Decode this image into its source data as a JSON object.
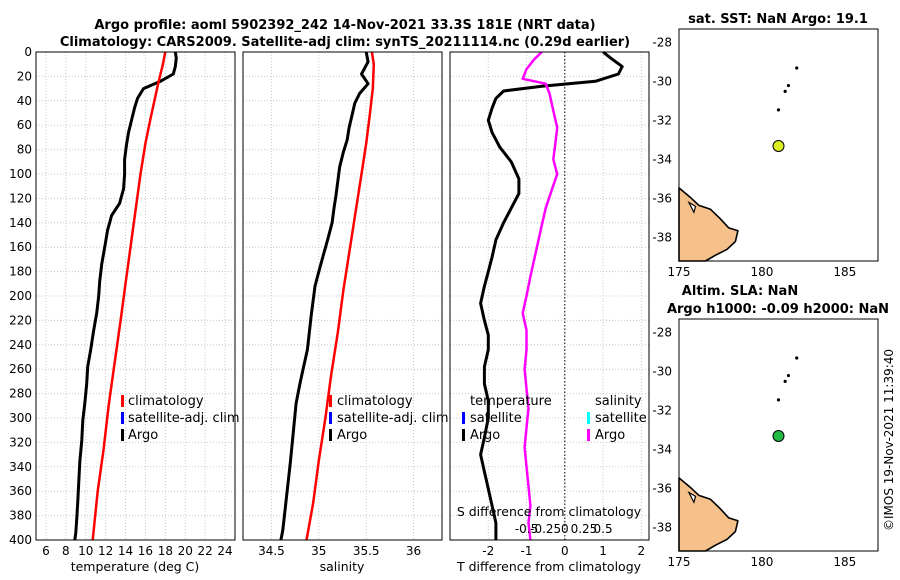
{
  "header": {
    "title_line1": "Argo profile: aoml 5902392_242 14-Nov-2021 33.3S 181E (NRT data)",
    "title_line2": "Climatology: CARS2009. Satellite-adj clim: synTS_20211114.nc (0.29d earlier)"
  },
  "stamp": "©IMOS 19-Nov-2021 11:39:40",
  "chart_data": [
    {
      "id": "temperature",
      "type": "line",
      "xlabel": "temperature (deg C)",
      "xlim": [
        5,
        25
      ],
      "xticks": [
        6,
        8,
        10,
        12,
        14,
        16,
        18,
        20,
        22,
        24
      ],
      "ylim": [
        0,
        400
      ],
      "yticks": [
        0,
        20,
        40,
        60,
        80,
        100,
        120,
        140,
        160,
        180,
        200,
        220,
        240,
        260,
        280,
        300,
        320,
        340,
        360,
        380,
        400
      ],
      "grid": true,
      "series": [
        {
          "name": "Argo",
          "color": "#000000",
          "points": [
            [
              19.0,
              0
            ],
            [
              19.1,
              5
            ],
            [
              19.0,
              12
            ],
            [
              18.8,
              18
            ],
            [
              17.5,
              24
            ],
            [
              15.8,
              30
            ],
            [
              15.2,
              38
            ],
            [
              14.9,
              46
            ],
            [
              14.6,
              56
            ],
            [
              14.3,
              66
            ],
            [
              14.1,
              76
            ],
            [
              13.9,
              88
            ],
            [
              13.9,
              100
            ],
            [
              13.8,
              112
            ],
            [
              13.4,
              124
            ],
            [
              12.6,
              134
            ],
            [
              12.2,
              146
            ],
            [
              11.9,
              160
            ],
            [
              11.6,
              174
            ],
            [
              11.4,
              188
            ],
            [
              11.3,
              200
            ],
            [
              11.1,
              214
            ],
            [
              10.8,
              228
            ],
            [
              10.5,
              244
            ],
            [
              10.2,
              258
            ],
            [
              10.1,
              272
            ],
            [
              9.9,
              288
            ],
            [
              9.7,
              302
            ],
            [
              9.6,
              318
            ],
            [
              9.4,
              336
            ],
            [
              9.3,
              352
            ],
            [
              9.2,
              368
            ],
            [
              9.1,
              382
            ],
            [
              9.0,
              394
            ],
            [
              8.9,
              400
            ]
          ]
        },
        {
          "name": "climatology",
          "color": "#ff0000",
          "points": [
            [
              18.0,
              0
            ],
            [
              17.7,
              12
            ],
            [
              17.3,
              25
            ],
            [
              16.9,
              40
            ],
            [
              16.5,
              55
            ],
            [
              16.0,
              75
            ],
            [
              15.5,
              100
            ],
            [
              15.0,
              130
            ],
            [
              14.5,
              160
            ],
            [
              14.0,
              190
            ],
            [
              13.5,
              220
            ],
            [
              12.9,
              255
            ],
            [
              12.3,
              290
            ],
            [
              11.8,
              325
            ],
            [
              11.2,
              360
            ],
            [
              10.7,
              400
            ]
          ]
        }
      ],
      "legend": [
        "climatology",
        "satellite-adj. clim",
        "Argo"
      ],
      "legend_colors": [
        "#ff0000",
        "#0000ff",
        "#000000"
      ]
    },
    {
      "id": "salinity",
      "type": "line",
      "xlabel": "salinity",
      "xlim": [
        34.2,
        36.3
      ],
      "xticks": [
        34.5,
        35,
        35.5,
        36
      ],
      "xtick_labels": [
        "34.5",
        "35",
        "35.5",
        "36"
      ],
      "ylim": [
        0,
        400
      ],
      "grid": true,
      "series": [
        {
          "name": "Argo",
          "color": "#000000",
          "points": [
            [
              35.5,
              0
            ],
            [
              35.52,
              8
            ],
            [
              35.45,
              18
            ],
            [
              35.52,
              26
            ],
            [
              35.43,
              34
            ],
            [
              35.38,
              42
            ],
            [
              35.35,
              52
            ],
            [
              35.32,
              62
            ],
            [
              35.3,
              72
            ],
            [
              35.26,
              82
            ],
            [
              35.22,
              94
            ],
            [
              35.2,
              106
            ],
            [
              35.18,
              118
            ],
            [
              35.16,
              128
            ],
            [
              35.14,
              140
            ],
            [
              35.1,
              152
            ],
            [
              35.05,
              166
            ],
            [
              35.0,
              180
            ],
            [
              34.96,
              192
            ],
            [
              34.94,
              204
            ],
            [
              34.92,
              216
            ],
            [
              34.9,
              230
            ],
            [
              34.88,
              244
            ],
            [
              34.84,
              258
            ],
            [
              34.8,
              272
            ],
            [
              34.76,
              288
            ],
            [
              34.74,
              304
            ],
            [
              34.72,
              320
            ],
            [
              34.7,
              336
            ],
            [
              34.68,
              350
            ],
            [
              34.66,
              364
            ],
            [
              34.64,
              378
            ],
            [
              34.62,
              392
            ],
            [
              34.6,
              400
            ]
          ]
        },
        {
          "name": "climatology",
          "color": "#ff0000",
          "points": [
            [
              35.56,
              0
            ],
            [
              35.58,
              10
            ],
            [
              35.57,
              30
            ],
            [
              35.54,
              50
            ],
            [
              35.5,
              75
            ],
            [
              35.45,
              100
            ],
            [
              35.39,
              130
            ],
            [
              35.33,
              160
            ],
            [
              35.26,
              195
            ],
            [
              35.2,
              230
            ],
            [
              35.13,
              265
            ],
            [
              35.07,
              300
            ],
            [
              35.0,
              335
            ],
            [
              34.94,
              370
            ],
            [
              34.87,
              400
            ]
          ]
        }
      ],
      "legend": [
        "climatology",
        "satellite-adj. clim",
        "Argo"
      ],
      "legend_colors": [
        "#ff0000",
        "#0000ff",
        "#000000"
      ]
    },
    {
      "id": "difference",
      "type": "line",
      "xlabel": "T difference from climatology",
      "x2label": "S difference from climatology",
      "xlim": [
        -3,
        2.2
      ],
      "xticks": [
        -2,
        -1,
        0,
        1,
        2
      ],
      "xtick_labels": [
        "-2",
        "-1",
        "0",
        "1",
        "2"
      ],
      "x2ticks": [
        -1.0,
        -0.5,
        0,
        0.5,
        1.0
      ],
      "x2tick_labels": [
        "-0.5",
        "-0.25",
        "0",
        "0.25",
        "0.5"
      ],
      "zero_line": true,
      "ylim": [
        0,
        400
      ],
      "grid": true,
      "series": [
        {
          "name": "temperature",
          "color": "#000000",
          "points": [
            [
              1.0,
              0
            ],
            [
              1.2,
              5
            ],
            [
              1.5,
              12
            ],
            [
              1.4,
              18
            ],
            [
              0.8,
              24
            ],
            [
              -0.6,
              28
            ],
            [
              -1.6,
              32
            ],
            [
              -1.8,
              38
            ],
            [
              -1.9,
              46
            ],
            [
              -2.0,
              56
            ],
            [
              -1.9,
              66
            ],
            [
              -1.7,
              78
            ],
            [
              -1.4,
              90
            ],
            [
              -1.2,
              104
            ],
            [
              -1.2,
              116
            ],
            [
              -1.4,
              128
            ],
            [
              -1.6,
              140
            ],
            [
              -1.8,
              154
            ],
            [
              -1.9,
              168
            ],
            [
              -2.0,
              180
            ],
            [
              -2.1,
              192
            ],
            [
              -2.2,
              206
            ],
            [
              -2.1,
              220
            ],
            [
              -2.0,
              232
            ],
            [
              -2.0,
              244
            ],
            [
              -2.1,
              258
            ],
            [
              -2.1,
              272
            ],
            [
              -2.0,
              286
            ],
            [
              -2.0,
              300
            ],
            [
              -2.1,
              316
            ],
            [
              -2.2,
              330
            ],
            [
              -2.1,
              344
            ],
            [
              -2.0,
              358
            ],
            [
              -1.9,
              372
            ],
            [
              -1.8,
              386
            ],
            [
              -1.8,
              400
            ]
          ]
        },
        {
          "name": "salinity",
          "color": "#ff00ff",
          "points": [
            [
              -0.6,
              0
            ],
            [
              -0.8,
              6
            ],
            [
              -1.0,
              14
            ],
            [
              -1.1,
              22
            ],
            [
              -0.5,
              26
            ],
            [
              -0.4,
              34
            ],
            [
              -0.3,
              48
            ],
            [
              -0.2,
              62
            ],
            [
              -0.25,
              76
            ],
            [
              -0.3,
              88
            ],
            [
              -0.2,
              100
            ],
            [
              -0.35,
              114
            ],
            [
              -0.5,
              128
            ],
            [
              -0.6,
              142
            ],
            [
              -0.7,
              156
            ],
            [
              -0.8,
              170
            ],
            [
              -0.9,
              184
            ],
            [
              -1.0,
              200
            ],
            [
              -1.1,
              214
            ],
            [
              -1.0,
              228
            ],
            [
              -1.0,
              244
            ],
            [
              -1.05,
              260
            ],
            [
              -1.0,
              276
            ],
            [
              -0.95,
              292
            ],
            [
              -1.0,
              308
            ],
            [
              -1.05,
              324
            ],
            [
              -1.0,
              340
            ],
            [
              -0.95,
              356
            ],
            [
              -0.9,
              372
            ],
            [
              -0.95,
              386
            ],
            [
              -0.9,
              400
            ]
          ]
        }
      ],
      "legend_t_title": "temperature",
      "legend_t": [
        "satellite",
        "Argo"
      ],
      "legend_t_colors": [
        "#0000ff",
        "#000000"
      ],
      "legend_s_title": "salinity",
      "legend_s": [
        "satellite",
        "Argo"
      ],
      "legend_s_colors": [
        "#00ffff",
        "#ff00ff"
      ]
    },
    {
      "id": "map_sst",
      "type": "scatter",
      "title": "sat. SST: NaN Argo: 19.1",
      "xlim": [
        175,
        187
      ],
      "ylim": [
        -39.2,
        -27.3
      ],
      "xticks": [
        175,
        180,
        185
      ],
      "yticks": [
        -28,
        -30,
        -32,
        -34,
        -36,
        -38
      ],
      "marker": {
        "lon": 181.0,
        "lat": -33.3,
        "color": "#ddee22"
      }
    },
    {
      "id": "map_sla",
      "type": "scatter",
      "title_line1": "Altim. SLA: NaN",
      "title_line2": "Argo h1000: -0.09 h2000: NaN",
      "xlim": [
        175,
        187
      ],
      "ylim": [
        -39.2,
        -27.3
      ],
      "xticks": [
        175,
        180,
        185
      ],
      "yticks": [
        -28,
        -30,
        -32,
        -34,
        -36,
        -38
      ],
      "marker": {
        "lon": 181.0,
        "lat": -33.3,
        "color": "#22bb44"
      }
    }
  ],
  "map_common": {
    "land_color": "#f5c08a",
    "islands": [
      [
        182.1,
        -29.3
      ],
      [
        181.6,
        -30.2
      ],
      [
        181.4,
        -30.5
      ],
      [
        181.0,
        -31.45
      ]
    ]
  }
}
